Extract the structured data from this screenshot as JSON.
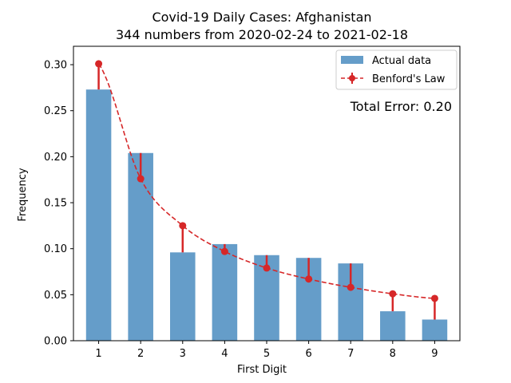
{
  "chart_data": {
    "type": "bar",
    "title": "Covid-19 Daily Cases: Afghanistan",
    "subtitle": "344 numbers from 2020-02-24 to 2021-02-18",
    "xlabel": "First Digit",
    "ylabel": "Frequency",
    "categories": [
      "1",
      "2",
      "3",
      "4",
      "5",
      "6",
      "7",
      "8",
      "9"
    ],
    "ylim": [
      0,
      0.32
    ],
    "yticks": [
      0.0,
      0.05,
      0.1,
      0.15,
      0.2,
      0.25,
      0.3
    ],
    "ytick_labels": [
      "0.00",
      "0.05",
      "0.10",
      "0.15",
      "0.20",
      "0.25",
      "0.30"
    ],
    "grid": false,
    "legend_position": "top-right",
    "series": [
      {
        "name": "Actual data",
        "kind": "bar",
        "color": "#4a8cbf",
        "values": [
          0.273,
          0.204,
          0.096,
          0.105,
          0.093,
          0.09,
          0.084,
          0.032,
          0.023
        ]
      },
      {
        "name": "Benford's Law",
        "kind": "line-dashed-markers",
        "color": "#d62728",
        "values": [
          0.301,
          0.176,
          0.125,
          0.097,
          0.079,
          0.067,
          0.058,
          0.051,
          0.046
        ]
      }
    ],
    "annotation": {
      "text": "Total Error: 0.20",
      "color": "#d62728"
    }
  }
}
